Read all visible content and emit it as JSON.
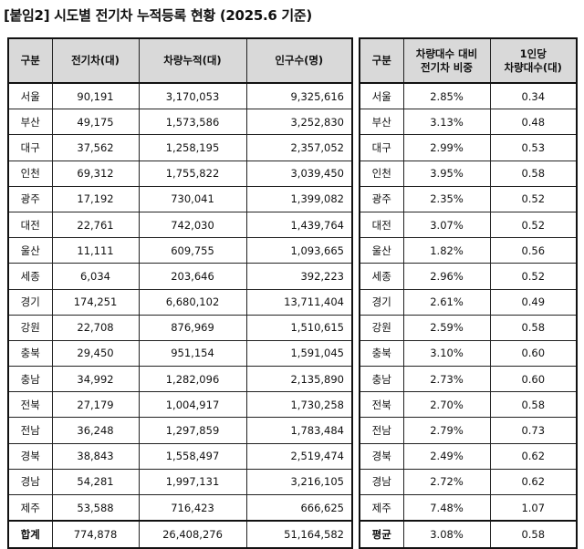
{
  "title": "[붙임2] 시도별 전기차 누적등록 현황 (2025.6 기준)",
  "table1": {
    "headers": [
      "구분",
      "전기차(대)",
      "차량누적(대)",
      "인구수(명)"
    ],
    "rows": [
      [
        "서울",
        "90,191",
        "3,170,053",
        "9,325,616"
      ],
      [
        "부산",
        "49,175",
        "1,573,586",
        "3,252,830"
      ],
      [
        "대구",
        "37,562",
        "1,258,195",
        "2,357,052"
      ],
      [
        "인천",
        "69,312",
        "1,755,822",
        "3,039,450"
      ],
      [
        "광주",
        "17,192",
        "730,041",
        "1,399,082"
      ],
      [
        "대전",
        "22,761",
        "742,030",
        "1,439,764"
      ],
      [
        "울산",
        "11,111",
        "609,755",
        "1,093,665"
      ],
      [
        "세종",
        "6,034",
        "203,646",
        "392,223"
      ],
      [
        "경기",
        "174,251",
        "6,680,102",
        "13,711,404"
      ],
      [
        "강원",
        "22,708",
        "876,969",
        "1,510,615"
      ],
      [
        "충북",
        "29,450",
        "951,154",
        "1,591,045"
      ],
      [
        "충남",
        "34,992",
        "1,282,096",
        "2,135,890"
      ],
      [
        "전북",
        "27,179",
        "1,004,917",
        "1,730,258"
      ],
      [
        "전남",
        "36,248",
        "1,297,859",
        "1,783,484"
      ],
      [
        "경북",
        "38,843",
        "1,558,497",
        "2,519,474"
      ],
      [
        "경남",
        "54,281",
        "1,997,131",
        "3,216,105"
      ],
      [
        "제주",
        "53,588",
        "716,423",
        "666,625"
      ]
    ],
    "total": [
      "합계",
      "774,878",
      "26,408,276",
      "51,164,582"
    ]
  },
  "table2": {
    "headers": [
      "구분",
      "차량대수 대비\n전기차 비중",
      "1인당\n차량대수(대)"
    ],
    "rows": [
      [
        "서울",
        "2.85%",
        "0.34"
      ],
      [
        "부산",
        "3.13%",
        "0.48"
      ],
      [
        "대구",
        "2.99%",
        "0.53"
      ],
      [
        "인천",
        "3.95%",
        "0.58"
      ],
      [
        "광주",
        "2.35%",
        "0.52"
      ],
      [
        "대전",
        "3.07%",
        "0.52"
      ],
      [
        "울산",
        "1.82%",
        "0.56"
      ],
      [
        "세종",
        "2.96%",
        "0.52"
      ],
      [
        "경기",
        "2.61%",
        "0.49"
      ],
      [
        "강원",
        "2.59%",
        "0.58"
      ],
      [
        "충북",
        "3.10%",
        "0.60"
      ],
      [
        "충남",
        "2.73%",
        "0.60"
      ],
      [
        "전북",
        "2.70%",
        "0.58"
      ],
      [
        "전남",
        "2.79%",
        "0.73"
      ],
      [
        "경북",
        "2.49%",
        "0.62"
      ],
      [
        "경남",
        "2.72%",
        "0.62"
      ],
      [
        "제주",
        "7.48%",
        "1.07"
      ]
    ],
    "total": [
      "평균",
      "3.08%",
      "0.58"
    ]
  }
}
